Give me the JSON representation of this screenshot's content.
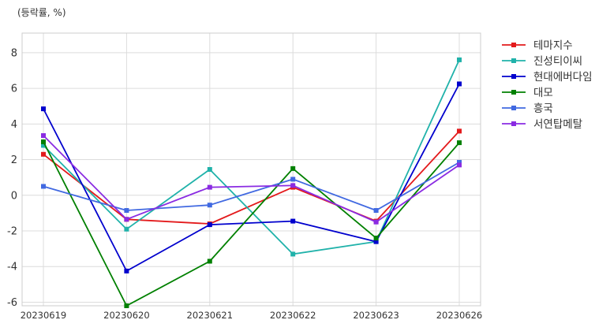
{
  "chart_data": {
    "type": "line",
    "unit_label": "(등락률, %)",
    "x": [
      "20230619",
      "20230620",
      "20230621",
      "20230622",
      "20230623",
      "20230626"
    ],
    "ylim": [
      -6.2,
      9.1
    ],
    "yticks": [
      -6,
      -4,
      -2,
      0,
      2,
      4,
      6,
      8
    ],
    "ytick_labels": [
      "-6",
      "-4",
      "-2",
      "0",
      "2",
      "4",
      "6",
      "8"
    ],
    "grid": true,
    "legend_position": "outside-right-top",
    "series": [
      {
        "name": "테마지수",
        "color": "#e31a1c",
        "values": [
          2.3,
          -1.35,
          -1.6,
          0.45,
          -1.45,
          3.6
        ]
      },
      {
        "name": "진성티이씨",
        "color": "#20b2aa",
        "values": [
          2.8,
          -1.9,
          1.45,
          -3.3,
          -2.6,
          7.6
        ]
      },
      {
        "name": "현대에버다임",
        "color": "#0000cd",
        "values": [
          4.85,
          -4.25,
          -1.65,
          -1.45,
          -2.6,
          6.25
        ]
      },
      {
        "name": "대모",
        "color": "#008000",
        "values": [
          3.0,
          -6.2,
          -3.7,
          1.5,
          -2.4,
          2.95
        ]
      },
      {
        "name": "흥국",
        "color": "#4169e1",
        "values": [
          0.5,
          -0.85,
          -0.55,
          0.9,
          -0.85,
          1.85
        ]
      },
      {
        "name": "서연탑메탈",
        "color": "#8a2be2",
        "values": [
          3.35,
          -1.35,
          0.45,
          0.55,
          -1.5,
          1.7
        ]
      }
    ]
  }
}
